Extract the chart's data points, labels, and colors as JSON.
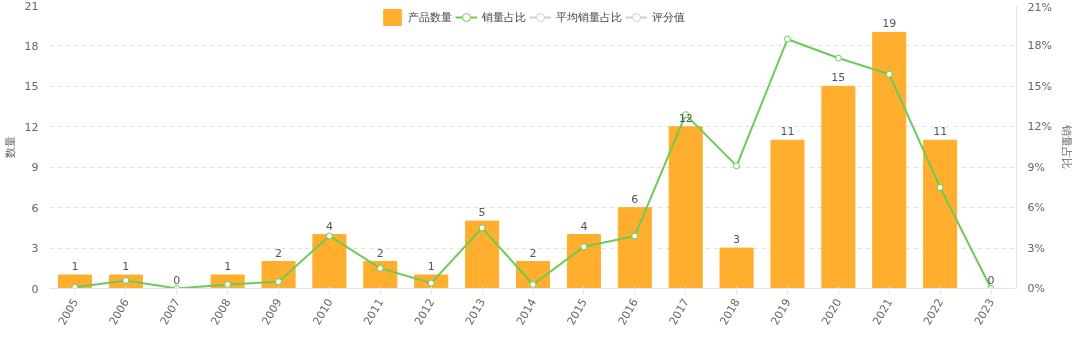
{
  "chart_data": {
    "type": "bar",
    "categories": [
      "2005",
      "2006",
      "2007",
      "2008",
      "2009",
      "2010",
      "2011",
      "2012",
      "2013",
      "2014",
      "2015",
      "2016",
      "2017",
      "2018",
      "2019",
      "2020",
      "2021",
      "2022",
      "2023"
    ],
    "ylabel": "数量",
    "y2label": "销量占比",
    "ylim": [
      0,
      21
    ],
    "yticks": [
      0,
      3,
      6,
      9,
      12,
      15,
      18,
      21
    ],
    "y2lim": [
      0,
      21
    ],
    "y2ticks": [
      {
        "value": 0,
        "label": "0%"
      },
      {
        "value": 3,
        "label": "3%"
      },
      {
        "value": 6,
        "label": "6%"
      },
      {
        "value": 9,
        "label": "9%"
      },
      {
        "value": 12,
        "label": "12%"
      },
      {
        "value": 15,
        "label": "15%"
      },
      {
        "value": 18,
        "label": "18%"
      },
      {
        "value": 21,
        "label": "21%"
      }
    ],
    "series": [
      {
        "name": "产品数量",
        "color": "#ffae2e",
        "values": [
          1,
          1,
          0,
          1,
          2,
          4,
          2,
          1,
          5,
          2,
          4,
          6,
          12,
          3,
          11,
          15,
          19,
          11,
          0
        ],
        "value_labels": [
          "1",
          "1",
          "0",
          "1",
          "2",
          "4",
          "2",
          "1",
          "5",
          "2",
          "4",
          "6",
          "12",
          "3",
          "11",
          "15",
          "19",
          "11",
          "0"
        ]
      },
      {
        "name": "销量占比",
        "type": "line",
        "color": "#6dcb55",
        "values": [
          0.1,
          0.6,
          0,
          0.3,
          0.5,
          3.9,
          1.5,
          0.4,
          4.5,
          0.3,
          3.1,
          3.9,
          12.9,
          9.1,
          18.5,
          17.1,
          15.9,
          7.5,
          0
        ]
      },
      {
        "name": "平均销量占比",
        "type": "line",
        "color": "#cccccc",
        "values": [
          null,
          null,
          null,
          null,
          null,
          null,
          null,
          null,
          null,
          null,
          null,
          null,
          null,
          null,
          null,
          null,
          null,
          null,
          null
        ]
      },
      {
        "name": "评分值",
        "type": "line",
        "color": "#cccccc",
        "values": [
          null,
          null,
          null,
          null,
          null,
          null,
          null,
          null,
          null,
          null,
          null,
          null,
          null,
          null,
          null,
          null,
          null,
          null,
          null
        ]
      }
    ],
    "grid": "y",
    "legend": "top",
    "marker": "circle"
  }
}
